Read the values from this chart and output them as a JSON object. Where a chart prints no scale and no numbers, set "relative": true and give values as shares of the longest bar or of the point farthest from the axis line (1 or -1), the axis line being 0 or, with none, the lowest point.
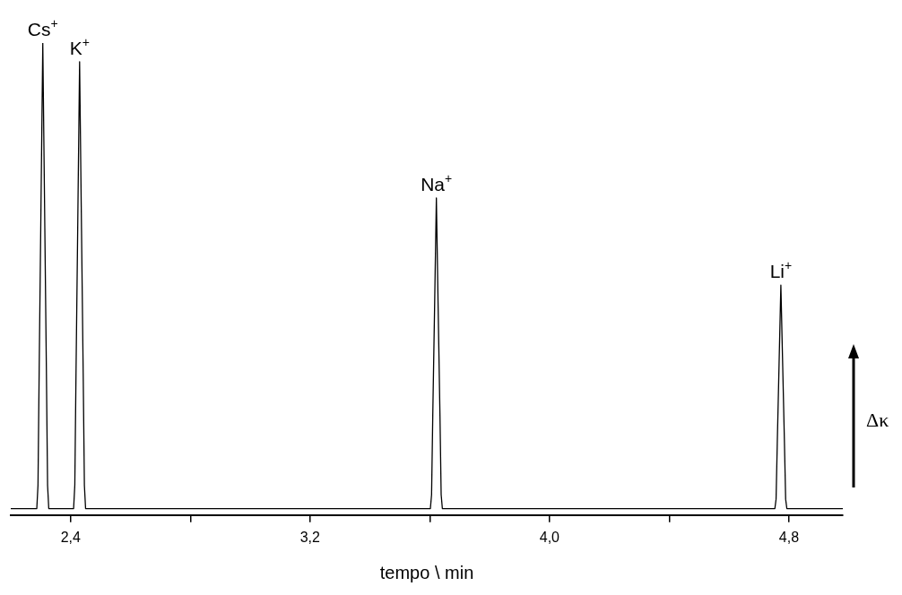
{
  "chart_data": {
    "type": "line",
    "relative": true,
    "xlabel": "tempo \\ min",
    "ylabel": "Δκ",
    "xlim": [
      2.2,
      4.98
    ],
    "xticks": [
      {
        "value": 2.4,
        "label": "2,4"
      },
      {
        "value": 2.8,
        "label": null
      },
      {
        "value": 3.2,
        "label": "3,2"
      },
      {
        "value": 3.6,
        "label": null
      },
      {
        "value": 4.0,
        "label": "4,0"
      },
      {
        "value": 4.4,
        "label": null
      },
      {
        "value": 4.8,
        "label": "4,8"
      }
    ],
    "series": [
      {
        "color": "#000000",
        "x": [
          2.2,
          2.287,
          2.291,
          2.295,
          2.301,
          2.307,
          2.313,
          2.319,
          2.323,
          2.327,
          2.41,
          2.414,
          2.418,
          2.424,
          2.43,
          2.436,
          2.442,
          2.446,
          2.45,
          3.602,
          3.606,
          3.61,
          3.616,
          3.622,
          3.628,
          3.634,
          3.638,
          3.642,
          4.753,
          4.757,
          4.761,
          4.767,
          4.773,
          4.779,
          4.785,
          4.789,
          4.793,
          4.98
        ],
        "values": [
          0,
          0,
          0.05,
          0.3,
          0.65,
          1,
          0.65,
          0.3,
          0.05,
          0,
          0,
          0.05,
          0.29,
          0.62,
          0.96,
          0.62,
          0.29,
          0.05,
          0,
          0,
          0.03,
          0.2,
          0.43,
          0.667,
          0.43,
          0.2,
          0.03,
          0,
          0,
          0.02,
          0.14,
          0.31,
          0.48,
          0.31,
          0.14,
          0.02,
          0,
          0
        ]
      }
    ],
    "annotations": [
      {
        "text": "Cs$^{+}$",
        "x": 2.307,
        "y": 1
      },
      {
        "text": "K$^{+}$",
        "x": 2.43,
        "y": 0.96
      },
      {
        "text": "Na$^{+}$",
        "x": 3.622,
        "y": 0.667
      },
      {
        "text": "Li$^{+}$",
        "x": 4.773,
        "y": 0.48
      }
    ],
    "grid": false,
    "legend": false,
    "marker": "none",
    "line_style": "solid"
  }
}
